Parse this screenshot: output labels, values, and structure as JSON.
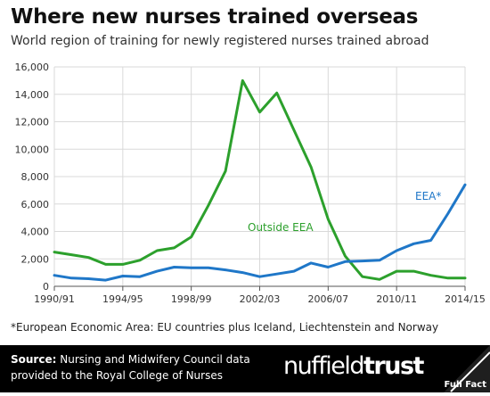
{
  "title": "Where new nurses trained overseas",
  "subtitle": "World region of training for newly registered nurses trained abroad",
  "footnote": "*European Economic Area: EU countries plus Iceland, Liechtenstein and Norway",
  "source": {
    "label": "Source:",
    "text": "Nursing and Midwifery Council data provided to the Royal College of Nurses"
  },
  "brand": {
    "part1": "nuffield",
    "part2": "trust"
  },
  "partner": "Full Fact",
  "colors": {
    "eea": "#1f77c8",
    "outside_eea": "#2ca02c",
    "grid": "#d9d9d9",
    "footer": "#000000"
  },
  "chart_data": {
    "type": "line",
    "x": [
      "1990/91",
      "1991/92",
      "1992/93",
      "1993/94",
      "1994/95",
      "1995/96",
      "1996/97",
      "1997/98",
      "1998/99",
      "1999/00",
      "2000/01",
      "2001/02",
      "2002/03",
      "2003/04",
      "2004/05",
      "2005/06",
      "2006/07",
      "2007/08",
      "2008/09",
      "2009/10",
      "2010/11",
      "2011/12",
      "2012/13",
      "2013/14",
      "2014/15"
    ],
    "x_tick_labels": [
      "1990/91",
      "1994/95",
      "1998/99",
      "2002/03",
      "2006/07",
      "2010/11",
      "2014/15"
    ],
    "y_ticks": [
      "0",
      "2,000",
      "4,000",
      "6,000",
      "8,000",
      "10,000",
      "12,000",
      "14,000",
      "16,000"
    ],
    "ylim": [
      0,
      16000
    ],
    "grid": true,
    "series": [
      {
        "name": "Outside EEA",
        "values": [
          2500,
          2300,
          2100,
          1600,
          1600,
          1900,
          2600,
          2800,
          3600,
          5900,
          8400,
          15000,
          12700,
          14100,
          11400,
          8700,
          4900,
          2200,
          700,
          500,
          1100,
          1100,
          800,
          600,
          600
        ]
      },
      {
        "name": "EEA*",
        "values": [
          800,
          600,
          550,
          450,
          750,
          700,
          1100,
          1400,
          1350,
          1350,
          1200,
          1000,
          700,
          900,
          1100,
          1700,
          1400,
          1800,
          1850,
          1900,
          2600,
          3100,
          3350,
          5300,
          7400
        ]
      }
    ]
  }
}
